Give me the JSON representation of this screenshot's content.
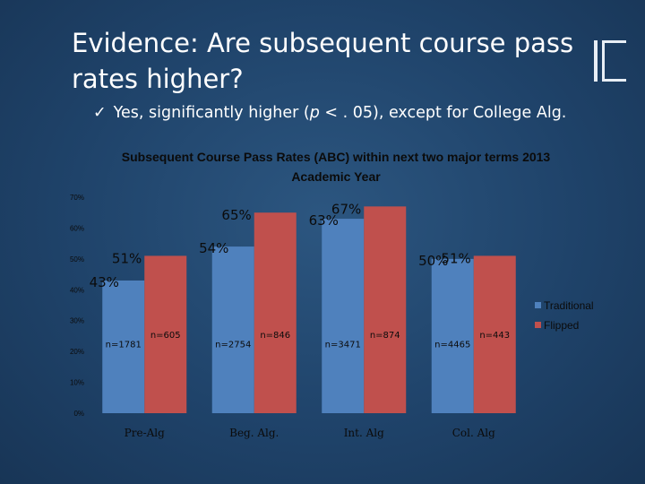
{
  "slide": {
    "title": "Evidence: Are subsequent course pass rates higher?",
    "bullet": {
      "check": "✓",
      "text_before": "Yes, significantly higher (",
      "italic": "p",
      "text_after": " < . 05), except for College Alg."
    }
  },
  "chart_data": {
    "type": "bar",
    "title": "Subsequent Course Pass Rates (ABC) within next two major terms 2013 Academic Year",
    "categories": [
      "Pre-Alg",
      "Beg. Alg.",
      "Int. Alg",
      "Col. Alg"
    ],
    "series": [
      {
        "name": "Traditional",
        "color": "#4f81bd",
        "values": [
          43,
          54,
          63,
          50
        ],
        "labels": [
          "43%",
          "54%",
          "63%",
          "50%"
        ],
        "n_labels": [
          "n=1781",
          "n=2754",
          "n=3471",
          "n=4465"
        ]
      },
      {
        "name": "Flipped",
        "color": "#c0504d",
        "values": [
          51,
          65,
          67,
          51
        ],
        "labels": [
          "51%",
          "65%",
          "67%",
          "51%"
        ],
        "n_labels": [
          "n=605",
          "n=846",
          "n=874",
          "n=443"
        ]
      }
    ],
    "yticks": [
      0,
      10,
      20,
      30,
      40,
      50,
      60,
      70
    ],
    "ytick_labels": [
      "0%",
      "10%",
      "20%",
      "30%",
      "40%",
      "50%",
      "60%",
      "70%"
    ],
    "ylim": [
      0,
      70
    ],
    "grid": false,
    "legend": "right"
  }
}
